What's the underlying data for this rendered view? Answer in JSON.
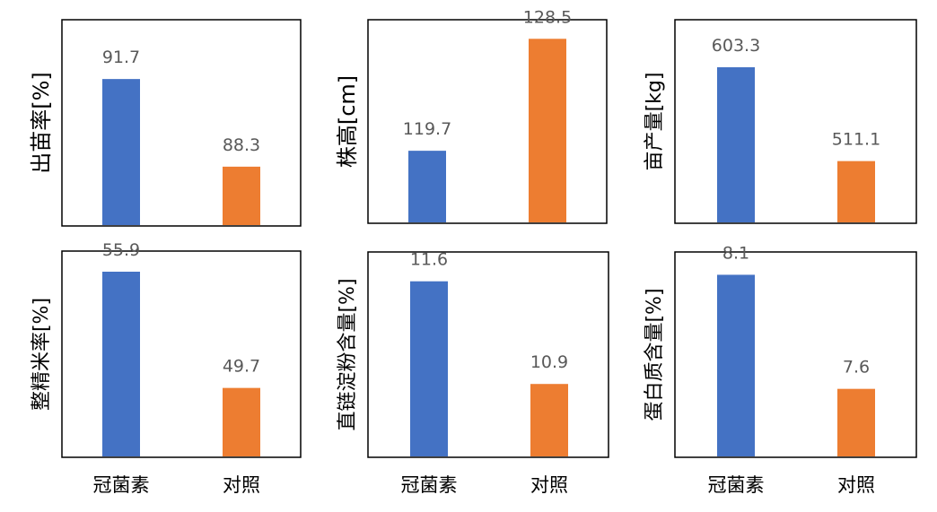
{
  "chart_data": [
    {
      "type": "bar",
      "categories": [
        "冠菌素",
        "对照"
      ],
      "values": [
        91.7,
        88.3
      ],
      "ylabel": "出苗率[%]",
      "ylim": [
        86,
        94
      ],
      "data_labels": [
        "91.7",
        "88.3"
      ]
    },
    {
      "type": "bar",
      "categories": [
        "冠菌素",
        "对照"
      ],
      "values": [
        119.7,
        128.5
      ],
      "ylabel": "株高[cm]",
      "ylim": [
        114,
        130
      ],
      "data_labels": [
        "119.7",
        "128.5"
      ]
    },
    {
      "type": "bar",
      "categories": [
        "冠菌素",
        "对照"
      ],
      "values": [
        603.3,
        511.1
      ],
      "ylabel": "亩产量[kg]",
      "ylim": [
        450,
        650
      ],
      "data_labels": [
        "603.3",
        "511.1"
      ]
    },
    {
      "type": "bar",
      "categories": [
        "冠菌素",
        "对照"
      ],
      "values": [
        55.9,
        49.7
      ],
      "ylabel": "整精米率[%]",
      "ylim": [
        46,
        57
      ],
      "data_labels": [
        "55.9",
        "49.7"
      ]
    },
    {
      "type": "bar",
      "categories": [
        "冠菌素",
        "对照"
      ],
      "values": [
        11.6,
        10.9
      ],
      "ylabel": "直链淀粉含量[%]",
      "ylim": [
        10.4,
        11.8
      ],
      "data_labels": [
        "11.6",
        "10.9"
      ]
    },
    {
      "type": "bar",
      "categories": [
        "冠菌素",
        "对照"
      ],
      "values": [
        8.1,
        7.6
      ],
      "ylabel": "蛋白质含量[%]",
      "ylim": [
        7.3,
        8.2
      ],
      "data_labels": [
        "8.1",
        "7.6"
      ]
    }
  ],
  "colors": {
    "series": [
      "#4472C4",
      "#ED7D31"
    ]
  },
  "grid": false,
  "show_category_labels_row": "bottom"
}
